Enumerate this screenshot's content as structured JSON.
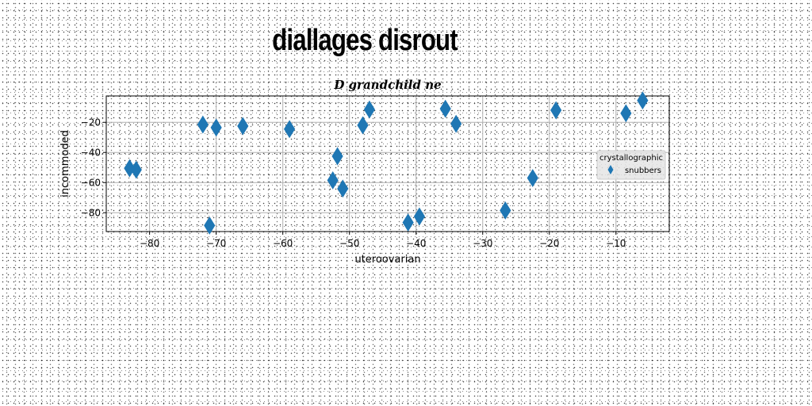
{
  "figure_title": "diallages disrout",
  "colors": {
    "marker": "#1f77b4",
    "grid": "#b0b0b0",
    "legend_bg": "#e5e5e5"
  },
  "chart_data": {
    "type": "scatter",
    "title": "D grandchild ne",
    "xlabel": "uteroovarian",
    "ylabel": "incommoded",
    "xlim": [
      -86.5,
      -2.0
    ],
    "ylim": [
      -92.5,
      -2.5
    ],
    "xticks": [
      -80,
      -70,
      -60,
      -50,
      -40,
      -30,
      -20,
      -10
    ],
    "yticks": [
      -20,
      -40,
      -60,
      -80
    ],
    "grid": true,
    "legend": {
      "title": "crystallographic",
      "placement": "center-right"
    },
    "series": [
      {
        "name": "snubbers",
        "marker": "thin_diamond",
        "x": [
          -83.0,
          -82.0,
          -72.0,
          -70.0,
          -71.0,
          -66.0,
          -59.0,
          -52.5,
          -51.8,
          -51.0,
          -48.0,
          -47.0,
          -41.2,
          -39.5,
          -35.6,
          -34.0,
          -26.6,
          -22.5,
          -19.0,
          -8.5,
          -6.0
        ],
        "y": [
          -50.5,
          -51.5,
          -21.5,
          -23.5,
          -88.5,
          -22.5,
          -24.5,
          -58.5,
          -42.5,
          -64.0,
          -22.0,
          -11.5,
          -86.5,
          -82.5,
          -11.0,
          -21.0,
          -78.5,
          -57.0,
          -12.0,
          -14.0,
          -5.5
        ]
      }
    ]
  }
}
